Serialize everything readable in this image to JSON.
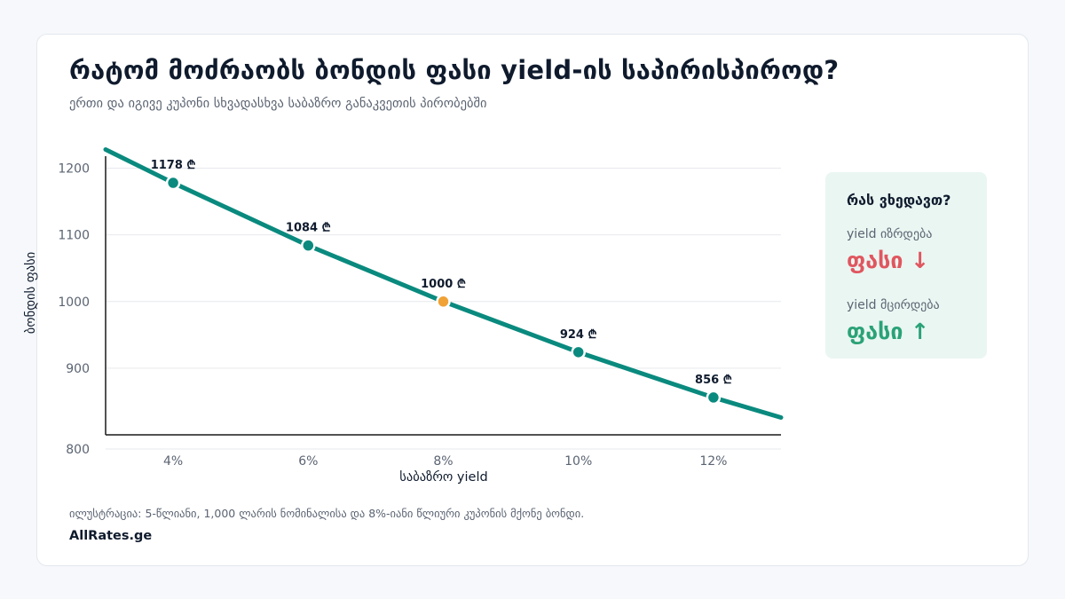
{
  "title": "რატომ მოძრაობს ბონდის ფასი yield-ის საპირისპიროდ?",
  "subtitle": "ერთი და იგივე კუპონი სხვადასხვა საბაზრო განაკვეთის პირობებში",
  "colors": {
    "line": "#0a8a7e",
    "point": "#0a8a7e",
    "par_point": "#f0a236",
    "axis": "#1a1a1a",
    "grid": "#e6e9ee"
  },
  "chart_data": {
    "type": "line",
    "xlabel": "საბაზრო yield",
    "ylabel": "ბონდის ფასი",
    "x_ticks": [
      "4%",
      "6%",
      "8%",
      "10%",
      "12%"
    ],
    "y_ticks": [
      "800",
      "900",
      "1000",
      "1100",
      "1200"
    ],
    "xlim": [
      3,
      13
    ],
    "ylim": [
      800,
      1230
    ],
    "grid": true,
    "line": {
      "x": [
        3,
        4,
        6,
        8,
        10,
        12,
        13
      ],
      "y": [
        1228,
        1178,
        1084,
        1000,
        924,
        856,
        826
      ]
    },
    "points": [
      {
        "x": 4,
        "y": 1178,
        "label": "1178 ₾"
      },
      {
        "x": 6,
        "y": 1084,
        "label": "1084 ₾"
      },
      {
        "x": 8,
        "y": 1000,
        "label": "1000 ₾",
        "highlight": true
      },
      {
        "x": 10,
        "y": 924,
        "label": "924 ₾"
      },
      {
        "x": 12,
        "y": 856,
        "label": "856 ₾"
      }
    ]
  },
  "side_panel": {
    "title": "რას ვხედავთ?",
    "rise_label": "yield იზრდება",
    "rise_effect": "ფასი ↓",
    "fall_label": "yield მცირდება",
    "fall_effect": "ფასი ↑"
  },
  "footnote": "ილუსტრაცია: 5-წლიანი, 1,000 ლარის ნომინალისა და 8%-იანი წლიური კუპონის მქონე ბონდი.",
  "brand": "AllRates.ge"
}
